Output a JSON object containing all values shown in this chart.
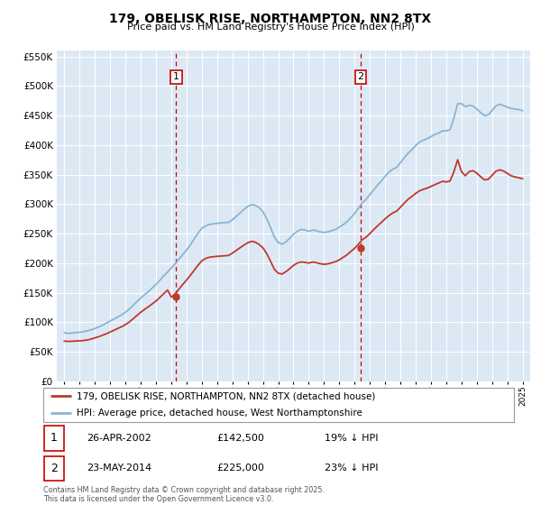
{
  "title": "179, OBELISK RISE, NORTHAMPTON, NN2 8TX",
  "subtitle": "Price paid vs. HM Land Registry's House Price Index (HPI)",
  "legend_line1": "179, OBELISK RISE, NORTHAMPTON, NN2 8TX (detached house)",
  "legend_line2": "HPI: Average price, detached house, West Northamptonshire",
  "footnote": "Contains HM Land Registry data © Crown copyright and database right 2025.\nThis data is licensed under the Open Government Licence v3.0.",
  "sale1_label": "1",
  "sale1_date": "26-APR-2002",
  "sale1_price": "£142,500",
  "sale1_note": "19% ↓ HPI",
  "sale2_label": "2",
  "sale2_date": "23-MAY-2014",
  "sale2_price": "£225,000",
  "sale2_note": "23% ↓ HPI",
  "vline1_x": 2002.32,
  "vline2_x": 2014.39,
  "sale1_marker_x": 2002.32,
  "sale1_marker_y": 142500,
  "sale2_marker_x": 2014.39,
  "sale2_marker_y": 225000,
  "hpi_color": "#8ab4d4",
  "sale_color": "#c0392b",
  "vline_color": "#cc0000",
  "plot_bg": "#dce9f5",
  "grid_color": "#ffffff",
  "ylim": [
    0,
    560000
  ],
  "xlim": [
    1994.5,
    2025.5
  ],
  "yticks": [
    0,
    50000,
    100000,
    150000,
    200000,
    250000,
    300000,
    350000,
    400000,
    450000,
    500000,
    550000
  ],
  "xticks": [
    1995,
    1996,
    1997,
    1998,
    1999,
    2000,
    2001,
    2002,
    2003,
    2004,
    2005,
    2006,
    2007,
    2008,
    2009,
    2010,
    2011,
    2012,
    2013,
    2014,
    2015,
    2016,
    2017,
    2018,
    2019,
    2020,
    2021,
    2022,
    2023,
    2024,
    2025
  ],
  "hpi_x": [
    1995.0,
    1995.25,
    1995.5,
    1995.75,
    1996.0,
    1996.25,
    1996.5,
    1996.75,
    1997.0,
    1997.25,
    1997.5,
    1997.75,
    1998.0,
    1998.25,
    1998.5,
    1998.75,
    1999.0,
    1999.25,
    1999.5,
    1999.75,
    2000.0,
    2000.25,
    2000.5,
    2000.75,
    2001.0,
    2001.25,
    2001.5,
    2001.75,
    2002.0,
    2002.25,
    2002.5,
    2002.75,
    2003.0,
    2003.25,
    2003.5,
    2003.75,
    2004.0,
    2004.25,
    2004.5,
    2004.75,
    2005.0,
    2005.25,
    2005.5,
    2005.75,
    2006.0,
    2006.25,
    2006.5,
    2006.75,
    2007.0,
    2007.25,
    2007.5,
    2007.75,
    2008.0,
    2008.25,
    2008.5,
    2008.75,
    2009.0,
    2009.25,
    2009.5,
    2009.75,
    2010.0,
    2010.25,
    2010.5,
    2010.75,
    2011.0,
    2011.25,
    2011.5,
    2011.75,
    2012.0,
    2012.25,
    2012.5,
    2012.75,
    2013.0,
    2013.25,
    2013.5,
    2013.75,
    2014.0,
    2014.25,
    2014.5,
    2014.75,
    2015.0,
    2015.25,
    2015.5,
    2015.75,
    2016.0,
    2016.25,
    2016.5,
    2016.75,
    2017.0,
    2017.25,
    2017.5,
    2017.75,
    2018.0,
    2018.25,
    2018.5,
    2018.75,
    2019.0,
    2019.25,
    2019.5,
    2019.75,
    2020.0,
    2020.25,
    2020.5,
    2020.75,
    2021.0,
    2021.25,
    2021.5,
    2021.75,
    2022.0,
    2022.25,
    2022.5,
    2022.75,
    2023.0,
    2023.25,
    2023.5,
    2023.75,
    2024.0,
    2024.25,
    2024.5,
    2024.75,
    2025.0
  ],
  "hpi_y": [
    82000,
    81000,
    81500,
    82500,
    83000,
    84000,
    85500,
    87000,
    89500,
    92000,
    95000,
    98500,
    102000,
    105500,
    109000,
    112500,
    117000,
    122500,
    128500,
    135000,
    141000,
    146500,
    152000,
    158000,
    164000,
    171000,
    178500,
    185000,
    192000,
    199000,
    207000,
    214500,
    222000,
    231000,
    241000,
    251000,
    259000,
    263000,
    265500,
    266500,
    267500,
    268000,
    268500,
    269000,
    273500,
    279000,
    285000,
    291000,
    296000,
    299000,
    298000,
    294000,
    287000,
    275000,
    260000,
    244000,
    235000,
    232000,
    236000,
    242000,
    249000,
    254000,
    257000,
    256000,
    254000,
    256000,
    255000,
    253000,
    252000,
    253000,
    255000,
    257000,
    261000,
    265000,
    270000,
    277000,
    284000,
    293000,
    302000,
    308000,
    316000,
    324000,
    332000,
    339000,
    347000,
    354000,
    359000,
    362000,
    370000,
    378000,
    386000,
    392000,
    399000,
    405000,
    408000,
    411000,
    414000,
    418000,
    420000,
    424000,
    424000,
    426000,
    445000,
    470000,
    470000,
    465000,
    467000,
    466000,
    461000,
    455000,
    450000,
    451000,
    458000,
    466000,
    469000,
    467000,
    464000,
    462000,
    461000,
    460000,
    458000
  ],
  "sale_x": [
    1995.0,
    1995.25,
    1995.5,
    1995.75,
    1996.0,
    1996.25,
    1996.5,
    1996.75,
    1997.0,
    1997.25,
    1997.5,
    1997.75,
    1998.0,
    1998.25,
    1998.5,
    1998.75,
    1999.0,
    1999.25,
    1999.5,
    1999.75,
    2000.0,
    2000.25,
    2000.5,
    2000.75,
    2001.0,
    2001.25,
    2001.5,
    2001.75,
    2002.0,
    2002.25,
    2002.5,
    2002.75,
    2003.0,
    2003.25,
    2003.5,
    2003.75,
    2004.0,
    2004.25,
    2004.5,
    2004.75,
    2005.0,
    2005.25,
    2005.5,
    2005.75,
    2006.0,
    2006.25,
    2006.5,
    2006.75,
    2007.0,
    2007.25,
    2007.5,
    2007.75,
    2008.0,
    2008.25,
    2008.5,
    2008.75,
    2009.0,
    2009.25,
    2009.5,
    2009.75,
    2010.0,
    2010.25,
    2010.5,
    2010.75,
    2011.0,
    2011.25,
    2011.5,
    2011.75,
    2012.0,
    2012.25,
    2012.5,
    2012.75,
    2013.0,
    2013.25,
    2013.5,
    2013.75,
    2014.0,
    2014.25,
    2014.5,
    2014.75,
    2015.0,
    2015.25,
    2015.5,
    2015.75,
    2016.0,
    2016.25,
    2016.5,
    2016.75,
    2017.0,
    2017.25,
    2017.5,
    2017.75,
    2018.0,
    2018.25,
    2018.5,
    2018.75,
    2019.0,
    2019.25,
    2019.5,
    2019.75,
    2020.0,
    2020.25,
    2020.5,
    2020.75,
    2021.0,
    2021.25,
    2021.5,
    2021.75,
    2022.0,
    2022.25,
    2022.5,
    2022.75,
    2023.0,
    2023.25,
    2023.5,
    2023.75,
    2024.0,
    2024.25,
    2024.5,
    2024.75,
    2025.0
  ],
  "sale_y": [
    68000,
    67500,
    67800,
    68200,
    68500,
    69000,
    70000,
    71500,
    73500,
    75500,
    78000,
    80500,
    83500,
    86500,
    89500,
    92500,
    96000,
    100500,
    105800,
    111500,
    117000,
    121700,
    126200,
    131000,
    136000,
    142000,
    148200,
    154500,
    142500,
    148000,
    156000,
    164000,
    171500,
    179500,
    188000,
    196500,
    204000,
    208000,
    210000,
    210800,
    211500,
    212000,
    212500,
    213000,
    217000,
    221500,
    226000,
    230500,
    234500,
    237000,
    235500,
    231500,
    226000,
    216000,
    203000,
    189500,
    183000,
    181500,
    185500,
    190500,
    196200,
    200200,
    202000,
    201200,
    200200,
    201800,
    200800,
    199000,
    198000,
    198800,
    200500,
    202500,
    205500,
    209800,
    214000,
    219700,
    225000,
    232000,
    239500,
    244000,
    250000,
    256800,
    263000,
    268800,
    275000,
    280500,
    285000,
    288000,
    294500,
    301500,
    308000,
    312800,
    318000,
    322500,
    325000,
    327000,
    329800,
    332800,
    335500,
    338500,
    337500,
    339000,
    354500,
    375000,
    355000,
    348000,
    355000,
    356500,
    352500,
    346500,
    341000,
    341800,
    348500,
    355500,
    358000,
    356000,
    352000,
    348000,
    346000,
    344500,
    343000
  ]
}
